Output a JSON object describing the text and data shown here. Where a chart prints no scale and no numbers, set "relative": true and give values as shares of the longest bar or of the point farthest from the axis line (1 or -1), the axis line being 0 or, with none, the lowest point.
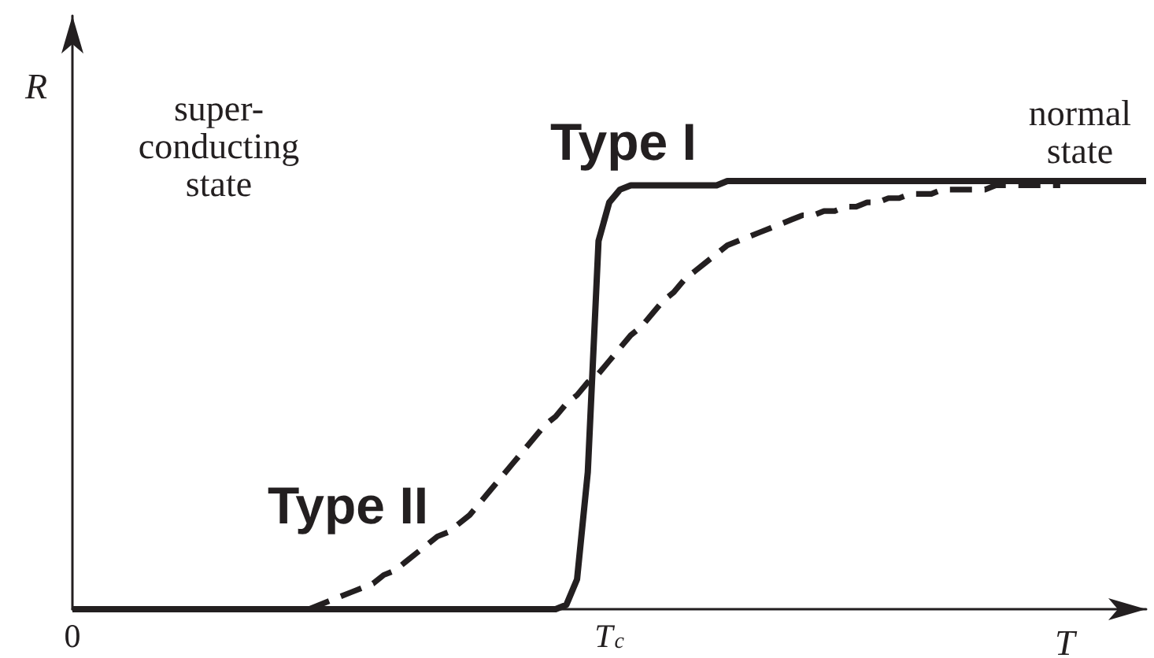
{
  "chart_data": {
    "type": "line",
    "xlabel": "T",
    "ylabel": "R",
    "relative": true,
    "categories": [
      "0",
      null,
      null,
      null,
      null,
      null,
      null,
      null,
      null,
      null,
      null,
      null,
      null,
      null,
      null,
      null,
      null,
      null,
      null,
      null,
      null,
      null,
      null,
      null,
      null,
      null,
      null,
      null,
      null,
      null,
      null,
      null,
      null,
      null,
      null,
      null,
      null,
      null,
      null,
      null,
      null,
      null,
      null,
      null,
      null,
      null,
      null,
      null,
      null,
      null,
      "T$_{c}$",
      null,
      null,
      null,
      null,
      null,
      null,
      null,
      null,
      null,
      null,
      null,
      null,
      null,
      null,
      null,
      null,
      null,
      null,
      null,
      null,
      null,
      null,
      null,
      null,
      null,
      null,
      null,
      null,
      null,
      null,
      null,
      null,
      null,
      null,
      null,
      null,
      null,
      null,
      null,
      null,
      null,
      null,
      null,
      null,
      null,
      null,
      null,
      null,
      null,
      null
    ],
    "annotations": [
      "super-\nconducting\nstate",
      "normal\nstate"
    ],
    "legend": false,
    "grid": false,
    "marker": "none",
    "series": [
      {
        "name": "Type I",
        "color": "#231f20",
        "line_style": "solid",
        "values": [
          0,
          0,
          0,
          0,
          0,
          0,
          0,
          0,
          0,
          0,
          0,
          0,
          0,
          0,
          0,
          0,
          0,
          0,
          0,
          0,
          0,
          0,
          0,
          0,
          0,
          0,
          0,
          0,
          0,
          0,
          0,
          0,
          0,
          0,
          0,
          0,
          0,
          0,
          0,
          0,
          0,
          0,
          0,
          0,
          0,
          0,
          0.01,
          0.07,
          0.32,
          0.86,
          0.95,
          0.98,
          0.99,
          0.99,
          0.99,
          0.99,
          0.99,
          0.99,
          0.99,
          0.99,
          0.99,
          1,
          1,
          1,
          1,
          1,
          1,
          1,
          1,
          1,
          1,
          1,
          1,
          1,
          1,
          1,
          1,
          1,
          1,
          1,
          1,
          1,
          1,
          1,
          1,
          1,
          1,
          1,
          1,
          1,
          1,
          1,
          1,
          1,
          1,
          1,
          1,
          1,
          1,
          1,
          1
        ]
      },
      {
        "name": "Type II",
        "color": "#231f20",
        "line_style": "dashed",
        "values": [
          null,
          null,
          null,
          null,
          null,
          null,
          null,
          null,
          null,
          null,
          null,
          null,
          null,
          null,
          null,
          null,
          null,
          null,
          null,
          null,
          null,
          null,
          0,
          0.01,
          0.02,
          0.03,
          0.04,
          0.05,
          0.06,
          0.08,
          0.09,
          0.11,
          0.13,
          0.15,
          0.17,
          0.18,
          0.2,
          0.22,
          0.25,
          0.28,
          0.31,
          0.34,
          0.37,
          0.4,
          0.43,
          0.45,
          0.48,
          0.5,
          0.53,
          0.55,
          0.58,
          0.61,
          0.64,
          0.66,
          0.69,
          0.72,
          0.74,
          0.77,
          0.79,
          0.81,
          0.83,
          0.85,
          0.86,
          0.87,
          0.88,
          0.89,
          0.9,
          0.91,
          0.92,
          0.92,
          0.93,
          0.93,
          0.94,
          0.94,
          0.95,
          0.95,
          0.96,
          0.96,
          0.97,
          0.97,
          0.97,
          0.98,
          0.98,
          0.98,
          0.98,
          0.98,
          0.99,
          0.99,
          0.99,
          0.99,
          0.99,
          0.99,
          0.99,
          null,
          null,
          null,
          null,
          null,
          null,
          null,
          null
        ]
      }
    ]
  }
}
